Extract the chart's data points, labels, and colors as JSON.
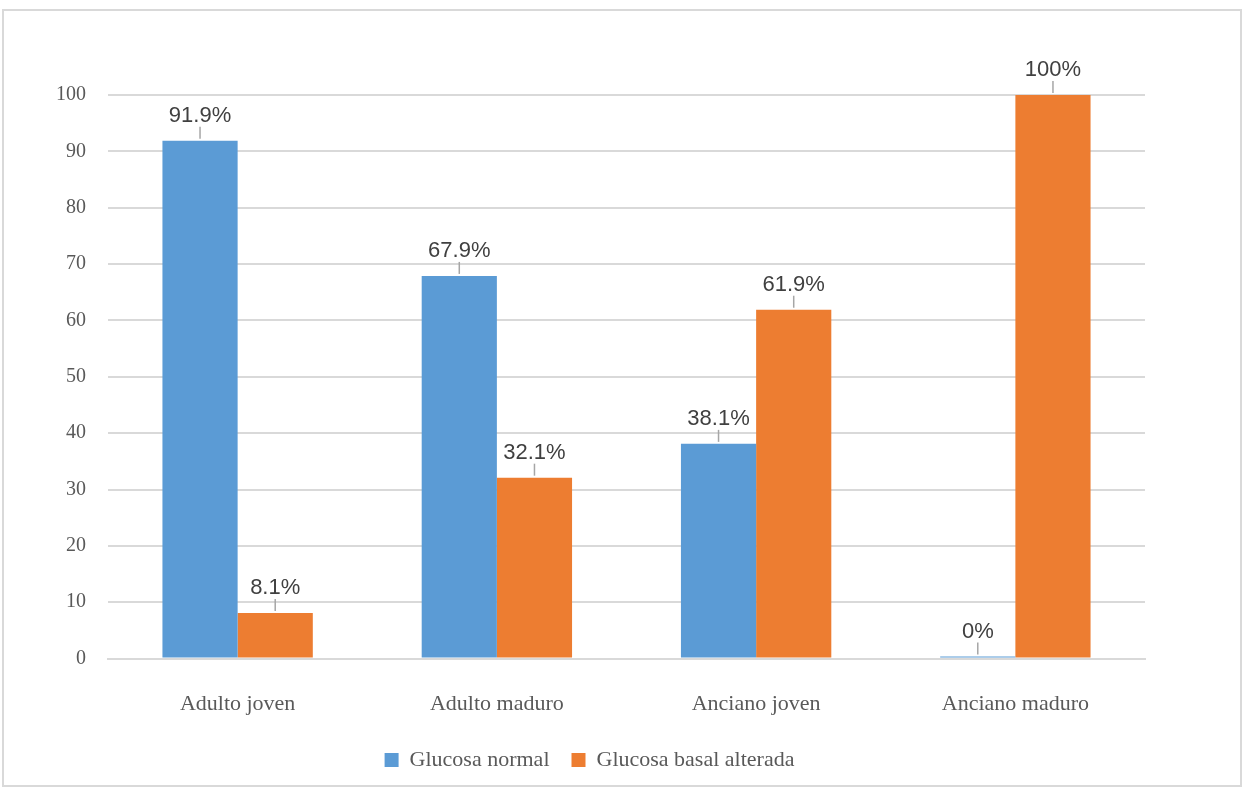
{
  "chart_data": {
    "type": "bar",
    "categories": [
      "Adulto joven",
      "Adulto maduro",
      "Anciano joven",
      "Anciano maduro"
    ],
    "series": [
      {
        "name": "Glucosa normal",
        "color": "#5b9bd5",
        "values": [
          91.9,
          67.9,
          38.1,
          0
        ],
        "value_labels": [
          "91.9%",
          "67.9%",
          "38.1%",
          "0%"
        ]
      },
      {
        "name": "Glucosa basal alterada",
        "color": "#ed7d31",
        "values": [
          8.1,
          32.1,
          61.9,
          100
        ],
        "value_labels": [
          "8.1%",
          "32.1%",
          "61.9%",
          "100%"
        ]
      }
    ],
    "ylim": [
      0,
      100
    ],
    "yticks": [
      0,
      10,
      20,
      30,
      40,
      50,
      60,
      70,
      80,
      90,
      100
    ],
    "grid": "y",
    "legend": "bottom"
  }
}
